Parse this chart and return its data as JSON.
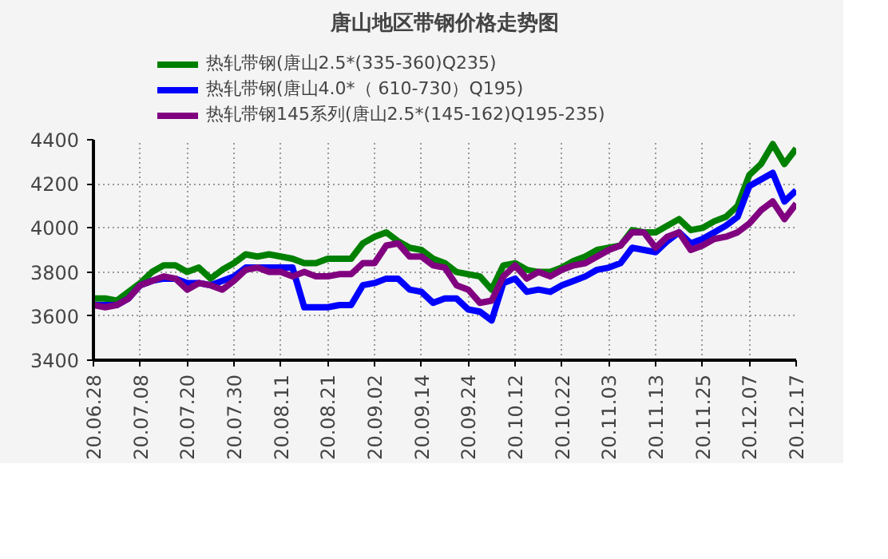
{
  "chart_data": {
    "type": "line",
    "title": "唐山地区带钢价格走势图",
    "categories": [
      "20.06.28",
      null,
      null,
      null,
      "20.07.08",
      null,
      null,
      null,
      "20.07.20",
      null,
      null,
      null,
      "20.07.30",
      null,
      null,
      null,
      "20.08.11",
      null,
      null,
      null,
      "20.08.21",
      null,
      null,
      null,
      "20.09.02",
      null,
      null,
      null,
      "20.09.14",
      null,
      null,
      null,
      "20.09.24",
      null,
      null,
      null,
      "20.10.12",
      null,
      null,
      null,
      "20.10.22",
      null,
      null,
      null,
      "20.11.03",
      null,
      null,
      null,
      "20.11.13",
      null,
      null,
      null,
      "20.11.25",
      null,
      null,
      null,
      "20.12.07",
      null,
      null,
      null,
      "20.12.17"
    ],
    "series": [
      {
        "name": "热轧带钢(唐山2.5*(335-360)Q235)",
        "color": "#008000",
        "values": [
          3680,
          3680,
          3670,
          3710,
          3750,
          3800,
          3830,
          3830,
          3800,
          3820,
          3770,
          3810,
          3840,
          3880,
          3870,
          3880,
          3870,
          3860,
          3840,
          3840,
          3860,
          3860,
          3860,
          3930,
          3960,
          3980,
          3940,
          3910,
          3900,
          3860,
          3840,
          3800,
          3790,
          3780,
          3720,
          3830,
          3840,
          3810,
          3800,
          3800,
          3820,
          3850,
          3870,
          3900,
          3910,
          3920,
          3990,
          3980,
          3980,
          4010,
          4040,
          3990,
          4000,
          4030,
          4050,
          4100,
          4240,
          4290,
          4380,
          4290,
          4360
        ]
      },
      {
        "name": "热轧带钢(唐山4.0*（ 610-730）Q195)",
        "color": "#0000ff",
        "values": [
          3650,
          3650,
          3650,
          3680,
          3740,
          3760,
          3770,
          3770,
          3750,
          3750,
          3740,
          3760,
          3780,
          3820,
          3820,
          3820,
          3820,
          3820,
          3640,
          3640,
          3640,
          3650,
          3650,
          3740,
          3750,
          3770,
          3770,
          3720,
          3710,
          3660,
          3680,
          3680,
          3630,
          3620,
          3580,
          3750,
          3770,
          3710,
          3720,
          3710,
          3740,
          3760,
          3780,
          3810,
          3820,
          3840,
          3910,
          3900,
          3890,
          3940,
          3980,
          3930,
          3950,
          3980,
          4010,
          4050,
          4190,
          4220,
          4250,
          4120,
          4170
        ]
      },
      {
        "name": "热轧带钢145系列(唐山2.5*(145-162)Q195-235)",
        "color": "#800080",
        "values": [
          3650,
          3640,
          3650,
          3680,
          3740,
          3760,
          3780,
          3770,
          3720,
          3750,
          3740,
          3720,
          3760,
          3810,
          3820,
          3800,
          3800,
          3780,
          3800,
          3780,
          3780,
          3790,
          3790,
          3840,
          3840,
          3920,
          3930,
          3870,
          3870,
          3830,
          3820,
          3740,
          3720,
          3660,
          3670,
          3780,
          3830,
          3770,
          3800,
          3780,
          3810,
          3830,
          3840,
          3870,
          3900,
          3920,
          3980,
          3980,
          3910,
          3960,
          3980,
          3900,
          3920,
          3950,
          3960,
          3980,
          4020,
          4080,
          4120,
          4040,
          4110
        ]
      }
    ],
    "ylim": [
      3400,
      4400
    ],
    "yticks": [
      3400,
      3600,
      3800,
      4000,
      4200,
      4400
    ],
    "grid": true,
    "legend": "top",
    "marker": "none",
    "line_style": "solid"
  }
}
